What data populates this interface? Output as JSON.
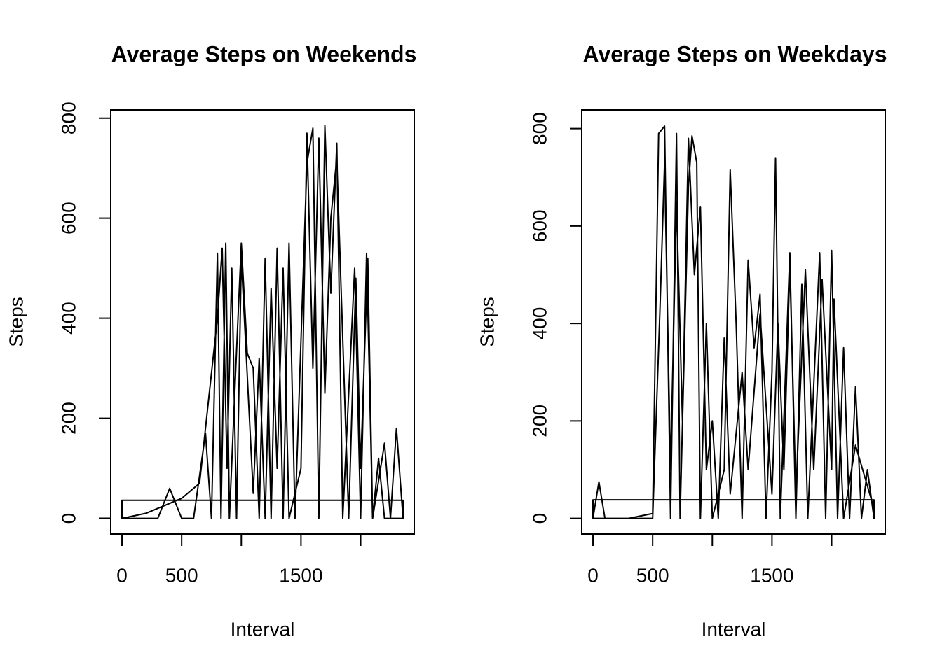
{
  "chart_data": [
    {
      "type": "line",
      "title": "Average Steps on Weekends",
      "xlabel": "Interval",
      "ylabel": "Steps",
      "color": "#000000",
      "xlim": [
        -94.2,
        2449.2
      ],
      "ylim": [
        -31.4,
        816.4
      ],
      "xticks": [
        0,
        500,
        {
          "value": 1000,
          "label": null
        },
        1500,
        {
          "value": 2000,
          "label": null
        }
      ],
      "yticks": [
        0,
        200,
        400,
        600,
        800
      ],
      "x": [
        0,
        100,
        300,
        400,
        500,
        600,
        700,
        750,
        800,
        830,
        870,
        900,
        950,
        1000,
        1050,
        1100,
        1150,
        1200,
        1250,
        1300,
        1350,
        1400,
        1450,
        1550,
        1600,
        1650,
        1700,
        1750,
        1800,
        1850,
        1950,
        2000,
        2050,
        2100,
        2200,
        2250,
        2300,
        2355,
        2355,
        0,
        0,
        200,
        500,
        650,
        800,
        840,
        880,
        920,
        960,
        1000,
        1100,
        1150,
        1200,
        1250,
        1300,
        1350,
        1400,
        1500,
        1550,
        1600,
        1650,
        1700,
        1750,
        1800,
        1900,
        1960,
        2000,
        2060,
        2100,
        2150,
        2200,
        2355
      ],
      "values": [
        0,
        0,
        0,
        60,
        0,
        0,
        170,
        0,
        530,
        0,
        550,
        0,
        280,
        550,
        330,
        300,
        0,
        520,
        0,
        540,
        0,
        550,
        0,
        710,
        780,
        0,
        785,
        450,
        750,
        0,
        500,
        0,
        530,
        0,
        150,
        0,
        180,
        0,
        36,
        36,
        0,
        10,
        40,
        70,
        400,
        540,
        100,
        500,
        0,
        520,
        50,
        320,
        0,
        460,
        100,
        500,
        0,
        100,
        770,
        300,
        760,
        250,
        600,
        720,
        0,
        480,
        100,
        520,
        0,
        120,
        0,
        0
      ]
    },
    {
      "type": "line",
      "title": "Average Steps on Weekdays",
      "xlabel": "Interval",
      "ylabel": "Steps",
      "color": "#000000",
      "xlim": [
        -94.2,
        2449.2
      ],
      "ylim": [
        -32.2,
        838.2
      ],
      "xticks": [
        0,
        500,
        {
          "value": 1000,
          "label": null
        },
        1500,
        {
          "value": 2000,
          "label": null
        }
      ],
      "yticks": [
        0,
        200,
        400,
        600,
        800
      ],
      "x": [
        0,
        50,
        100,
        300,
        500,
        550,
        600,
        650,
        700,
        730,
        800,
        830,
        870,
        900,
        950,
        1000,
        1100,
        1150,
        1200,
        1250,
        1300,
        1350,
        1400,
        1450,
        1500,
        1530,
        1570,
        1650,
        1700,
        1750,
        1800,
        1900,
        1950,
        2000,
        2050,
        2100,
        2150,
        2200,
        2250,
        2300,
        2355,
        2355,
        0,
        0,
        500,
        560,
        600,
        650,
        700,
        750,
        800,
        850,
        900,
        950,
        1000,
        1050,
        1100,
        1150,
        1250,
        1300,
        1400,
        1500,
        1550,
        1600,
        1650,
        1700,
        1780,
        1850,
        1920,
        2000,
        2020,
        2100,
        2200,
        2355
      ],
      "values": [
        0,
        75,
        0,
        0,
        10,
        790,
        805,
        0,
        790,
        0,
        680,
        785,
        730,
        0,
        400,
        0,
        100,
        715,
        400,
        0,
        530,
        350,
        460,
        0,
        300,
        740,
        0,
        545,
        0,
        480,
        0,
        545,
        0,
        550,
        0,
        350,
        0,
        270,
        0,
        100,
        0,
        38,
        38,
        0,
        0,
        420,
        730,
        100,
        650,
        200,
        780,
        500,
        640,
        100,
        200,
        0,
        370,
        50,
        300,
        100,
        420,
        50,
        400,
        100,
        520,
        50,
        510,
        100,
        490,
        100,
        450,
        0,
        150,
        20
      ]
    }
  ]
}
